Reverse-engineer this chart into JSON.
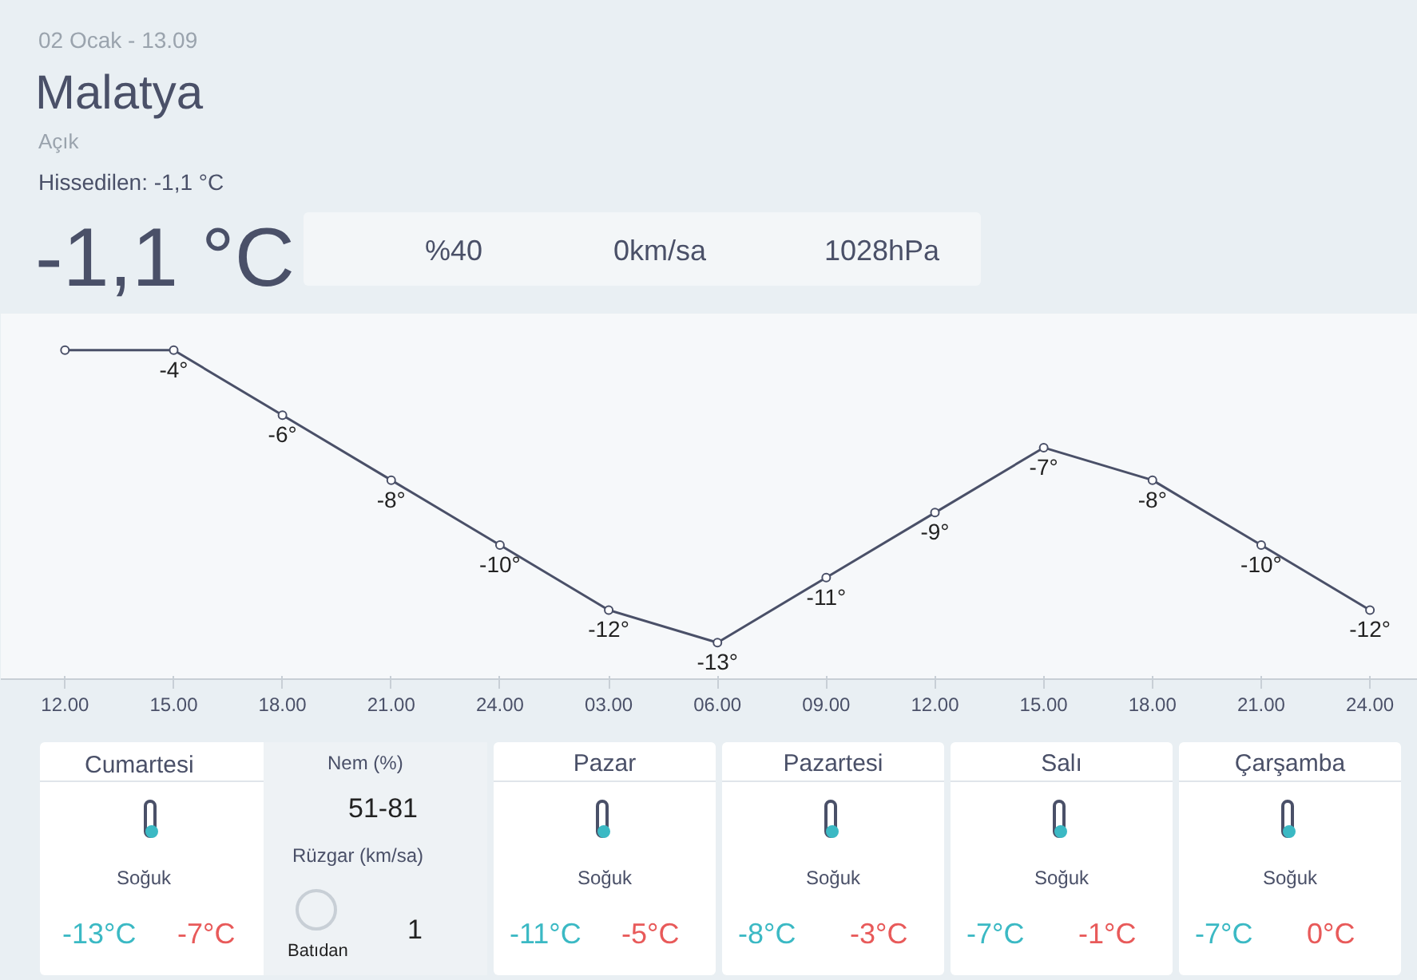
{
  "chart_data": {
    "type": "line",
    "title": "Malatya",
    "subtitle": "02 Ocak - 13.09",
    "categories": [
      "12.00",
      "15.00",
      "18.00",
      "21.00",
      "24.00",
      "03.00",
      "06.00",
      "09.00",
      "12.00",
      "15.00",
      "18.00",
      "21.00",
      "24.00"
    ],
    "values": [
      -4,
      -4,
      -6,
      -8,
      -10,
      -12,
      -13,
      -11,
      -9,
      -7,
      -8,
      -10,
      -12
    ],
    "value_labels": [
      null,
      "-4°",
      "-6°",
      "-8°",
      "-10°",
      "-12°",
      "-13°",
      "-11°",
      "-9°",
      "-7°",
      "-8°",
      "-10°",
      "-12°"
    ],
    "color": "#4a5068",
    "marker": "circle",
    "grid": false,
    "tick_labels": "x",
    "annotations": [
      "Açık",
      "Hissedilen: -1,1 °C",
      "-1,1 °C",
      "%40",
      "0km/sa",
      "1028hPa",
      "Cumartesi",
      "Nem (%)",
      "51-81",
      "Rüzgar (km/sa)",
      "Soğuk",
      "-13°C",
      "-7°C",
      "Batıdan",
      "1",
      "Pazar",
      "Soğuk",
      "-11°C",
      "-5°C",
      "Pazartesi",
      "Soğuk",
      "-8°C",
      "-3°C",
      "Salı",
      "Soğuk",
      "-7°C",
      "-1°C",
      "Çarşamba",
      "Soğuk",
      "-7°C",
      "0°C"
    ]
  }
}
